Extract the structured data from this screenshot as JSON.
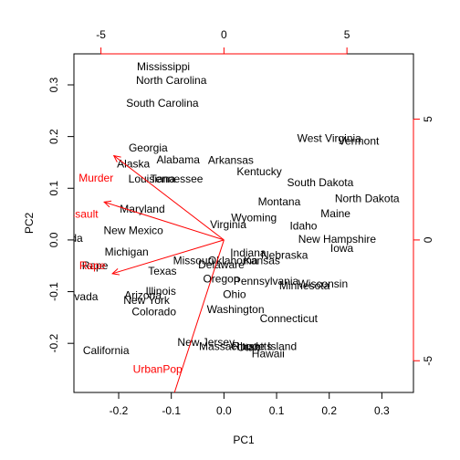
{
  "chart_data": {
    "type": "scatter",
    "subtype": "pca-biplot",
    "title": "",
    "xlabel": "PC1",
    "ylabel": "PC2",
    "xlim": [
      -0.285,
      0.36
    ],
    "ylim": [
      -0.295,
      0.36
    ],
    "x_ticks": [
      -0.2,
      -0.1,
      0.0,
      0.1,
      0.2,
      0.3
    ],
    "x_tick_labels": [
      "-0.2",
      "-0.1",
      "0.0",
      "0.1",
      "0.2",
      "0.3"
    ],
    "y_ticks": [
      -0.2,
      -0.1,
      0.0,
      0.1,
      0.2,
      0.3
    ],
    "y_tick_labels": [
      "-0.2",
      "-0.1",
      "0.0",
      "0.1",
      "0.2",
      "0.3"
    ],
    "loadings_scale": 21.4,
    "top_ticks": [
      -5,
      0,
      5
    ],
    "top_tick_labels": [
      "-5",
      "0",
      "5"
    ],
    "right_ticks": [
      -5,
      0,
      5
    ],
    "right_tick_labels": [
      "-5",
      "0",
      "5"
    ],
    "point_color": "#000000",
    "loading_color": "#ff0000",
    "points": [
      {
        "label": "Mississippi",
        "x": -0.115,
        "y": 0.335
      },
      {
        "label": "North Carolina",
        "x": -0.1,
        "y": 0.309
      },
      {
        "label": "South Carolina",
        "x": -0.117,
        "y": 0.265
      },
      {
        "label": "West Virginia",
        "x": 0.2,
        "y": 0.197
      },
      {
        "label": "Vermont",
        "x": 0.256,
        "y": 0.191
      },
      {
        "label": "Georgia",
        "x": -0.144,
        "y": 0.178
      },
      {
        "label": "Alabama",
        "x": -0.087,
        "y": 0.155
      },
      {
        "label": "Arkansas",
        "x": 0.013,
        "y": 0.154
      },
      {
        "label": "Alaska",
        "x": -0.172,
        "y": 0.147
      },
      {
        "label": "Kentucky",
        "x": 0.067,
        "y": 0.132
      },
      {
        "label": "Louisiana",
        "x": -0.137,
        "y": 0.118
      },
      {
        "label": "Tennessee",
        "x": -0.09,
        "y": 0.118
      },
      {
        "label": "South Dakota",
        "x": 0.183,
        "y": 0.111
      },
      {
        "label": "North Dakota",
        "x": 0.272,
        "y": 0.08
      },
      {
        "label": "Montana",
        "x": 0.105,
        "y": 0.074
      },
      {
        "label": "Maryland",
        "x": -0.155,
        "y": 0.06
      },
      {
        "label": "Maine",
        "x": 0.212,
        "y": 0.051
      },
      {
        "label": "Wyoming",
        "x": 0.057,
        "y": 0.043
      },
      {
        "label": "Virginia",
        "x": 0.008,
        "y": 0.03
      },
      {
        "label": "Idaho",
        "x": 0.151,
        "y": 0.027
      },
      {
        "label": "New Mexico",
        "x": -0.172,
        "y": 0.018
      },
      {
        "label": "Florida",
        "x": -0.3,
        "y": 0.003
      },
      {
        "label": "New Hampshire",
        "x": 0.215,
        "y": 0.002
      },
      {
        "label": "Michigan",
        "x": -0.185,
        "y": -0.023
      },
      {
        "label": "Iowa",
        "x": 0.224,
        "y": -0.016
      },
      {
        "label": "Indiana",
        "x": 0.046,
        "y": -0.025
      },
      {
        "label": "Nebraska",
        "x": 0.115,
        "y": -0.029
      },
      {
        "label": "Missouri",
        "x": -0.058,
        "y": -0.04
      },
      {
        "label": "Kansas",
        "x": 0.072,
        "y": -0.04
      },
      {
        "label": "Oklahoma",
        "x": 0.017,
        "y": -0.04
      },
      {
        "label": "Rape",
        "x": -0.245,
        "y": -0.05
      },
      {
        "label": "Delaware",
        "x": -0.005,
        "y": -0.048
      },
      {
        "label": "Texas",
        "x": -0.117,
        "y": -0.06
      },
      {
        "label": "Oregon",
        "x": -0.005,
        "y": -0.075
      },
      {
        "label": "Pennsylvania",
        "x": 0.08,
        "y": -0.08
      },
      {
        "label": "Wisconsin",
        "x": 0.188,
        "y": -0.085
      },
      {
        "label": "Minnesota",
        "x": 0.153,
        "y": -0.088
      },
      {
        "label": "Illinois",
        "x": -0.12,
        "y": -0.099
      },
      {
        "label": "Ohio",
        "x": 0.02,
        "y": -0.105
      },
      {
        "label": "Nevada",
        "x": -0.275,
        "y": -0.11
      },
      {
        "label": "Arizona",
        "x": -0.154,
        "y": -0.107
      },
      {
        "label": "New York",
        "x": -0.147,
        "y": -0.117
      },
      {
        "label": "Washington",
        "x": 0.022,
        "y": -0.134
      },
      {
        "label": "Colorado",
        "x": -0.133,
        "y": -0.139
      },
      {
        "label": "Connecticut",
        "x": 0.123,
        "y": -0.152
      },
      {
        "label": "New Jersey",
        "x": -0.034,
        "y": -0.198
      },
      {
        "label": "Massachusetts",
        "x": 0.022,
        "y": -0.206
      },
      {
        "label": "Rhode Island",
        "x": 0.077,
        "y": -0.206
      },
      {
        "label": "Utah",
        "x": 0.047,
        "y": -0.208
      },
      {
        "label": "California",
        "x": -0.224,
        "y": -0.214
      },
      {
        "label": "Hawaii",
        "x": 0.084,
        "y": -0.22
      }
    ],
    "loadings": [
      {
        "name": "Murder",
        "x": -0.536,
        "y": 0.418,
        "label_x": -0.243,
        "label_y": 0.12
      },
      {
        "name": "Assault",
        "x": -0.583,
        "y": 0.188,
        "label_x": -0.273,
        "label_y": 0.05
      },
      {
        "name": "UrbanPop",
        "x": -0.278,
        "y": -0.873,
        "label_x": -0.126,
        "label_y": -0.25
      },
      {
        "name": "Rape",
        "x": -0.543,
        "y": -0.167,
        "label_x": -0.25,
        "label_y": -0.05
      }
    ]
  }
}
